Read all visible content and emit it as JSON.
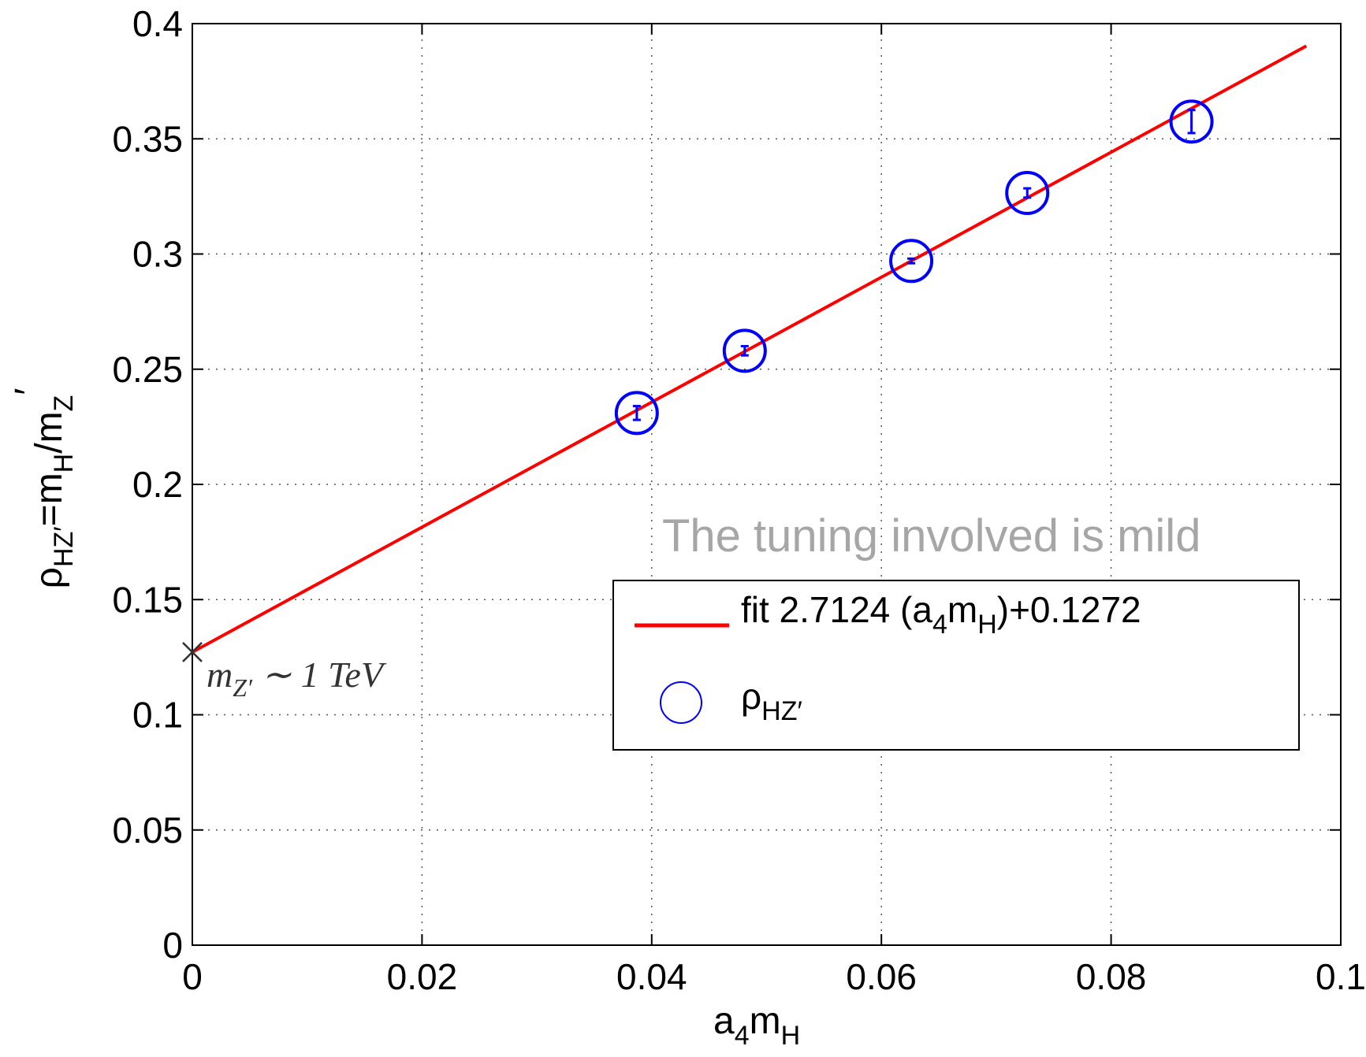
{
  "chart_data": {
    "type": "scatter",
    "xlabel": {
      "base": "a",
      "sub1": "4",
      "mid": "m",
      "sub2": "H"
    },
    "ylabel": {
      "base": "ρ",
      "sub1": "HZ′",
      "mid": "=m",
      "sub2": "H",
      "mid2": "/m",
      "sub3": "Z",
      "sup": "′"
    },
    "xlim": [
      0,
      0.1
    ],
    "ylim": [
      0,
      0.4
    ],
    "xticks": [
      0,
      0.02,
      0.04,
      0.06,
      0.08,
      0.1
    ],
    "xtick_labels": [
      "0",
      "0.02",
      "0.04",
      "0.06",
      "0.08",
      "0.1"
    ],
    "yticks": [
      0,
      0.05,
      0.1,
      0.15,
      0.2,
      0.25,
      0.3,
      0.35,
      0.4
    ],
    "ytick_labels": [
      "0",
      "0.05",
      "0.1",
      "0.15",
      "0.2",
      "0.25",
      "0.3",
      "0.35",
      "0.4"
    ],
    "grid": true,
    "series": [
      {
        "name": "ρHZ′",
        "kind": "scatter",
        "color": "#0000ff",
        "points": [
          {
            "x": 0.0387,
            "y": 0.231,
            "err": 0.003
          },
          {
            "x": 0.0481,
            "y": 0.258,
            "err": 0.002
          },
          {
            "x": 0.0626,
            "y": 0.297,
            "err": 0.001
          },
          {
            "x": 0.0727,
            "y": 0.3265,
            "err": 0.002
          },
          {
            "x": 0.087,
            "y": 0.3575,
            "err": 0.005
          }
        ]
      },
      {
        "name": "fit 2.7124 (a4mH)+0.1272",
        "kind": "line",
        "color": "#ff0000",
        "slope": 2.7124,
        "intercept": 0.1272,
        "x_range": [
          0,
          0.097
        ]
      }
    ],
    "legend": {
      "placement": "lower-right",
      "fit_entry": {
        "prefix": "fit 2.7124 (a",
        "sub1": "4",
        "mid": "m",
        "sub2": "H",
        "suffix": ")+0.1272"
      },
      "points_entry": {
        "base": "ρ",
        "sub": "HZ′"
      }
    },
    "annotations": {
      "tuning_note": "The tuning involved is mild",
      "marker_point": {
        "x": 0,
        "y": 0.1272
      },
      "marker_label": {
        "base": "m",
        "sub": "Z′",
        "rest": " ∼ 1 TeV"
      }
    }
  }
}
